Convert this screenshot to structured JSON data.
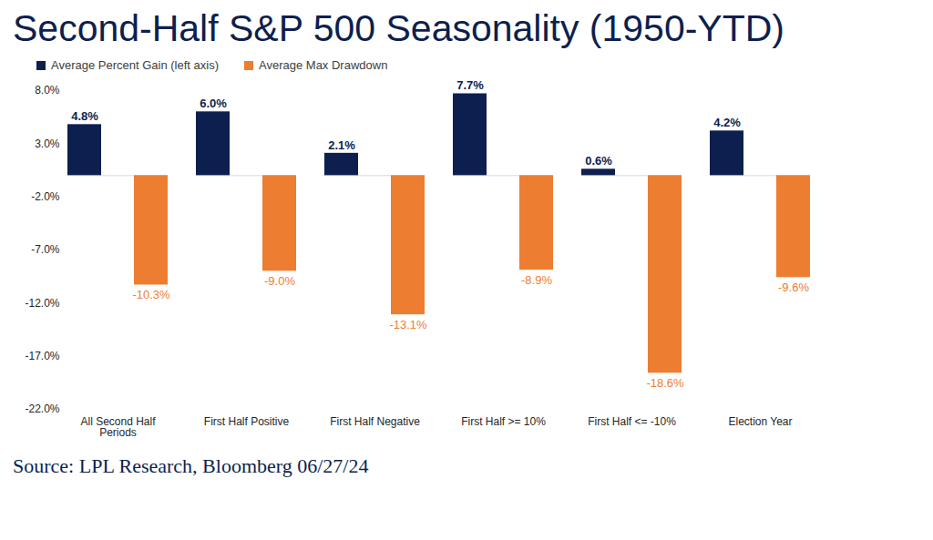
{
  "chart_data": {
    "type": "bar",
    "title": "Second-Half S&P 500 Seasonality (1950-YTD)",
    "caption": "Source: LPL Research, Bloomberg 06/27/24",
    "categories": [
      "All Second Half Periods",
      "First Half Positive",
      "First Half Negative",
      "First Half >= 10%",
      "First Half <= -10%",
      "Election Year"
    ],
    "series": [
      {
        "name": "Average Percent Gain (left axis)",
        "color": "#0d1f4f",
        "values": [
          4.8,
          6.0,
          2.1,
          7.7,
          0.6,
          4.2
        ],
        "value_labels": [
          "4.8%",
          "6.0%",
          "2.1%",
          "7.7%",
          "0.6%",
          "4.2%"
        ]
      },
      {
        "name": "Average Max Drawdown",
        "color": "#ed7d31",
        "values": [
          -10.3,
          -9.0,
          -13.1,
          -8.9,
          -18.6,
          -9.6
        ],
        "value_labels": [
          "-10.3%",
          "-9.0%",
          "-13.1%",
          "-8.9%",
          "-18.6%",
          "-9.6%"
        ]
      }
    ],
    "ylim": [
      -22,
      8
    ],
    "yticks": [
      {
        "value": 8,
        "label": "8.0%"
      },
      {
        "value": 3,
        "label": "3.0%"
      },
      {
        "value": -2,
        "label": "-2.0%"
      },
      {
        "value": -7,
        "label": "-7.0%"
      },
      {
        "value": -12,
        "label": "-12.0%"
      },
      {
        "value": -17,
        "label": "-17.0%"
      },
      {
        "value": -22,
        "label": "-22.0%"
      }
    ],
    "grid": false,
    "legend": "top-left",
    "data_labels": true
  }
}
